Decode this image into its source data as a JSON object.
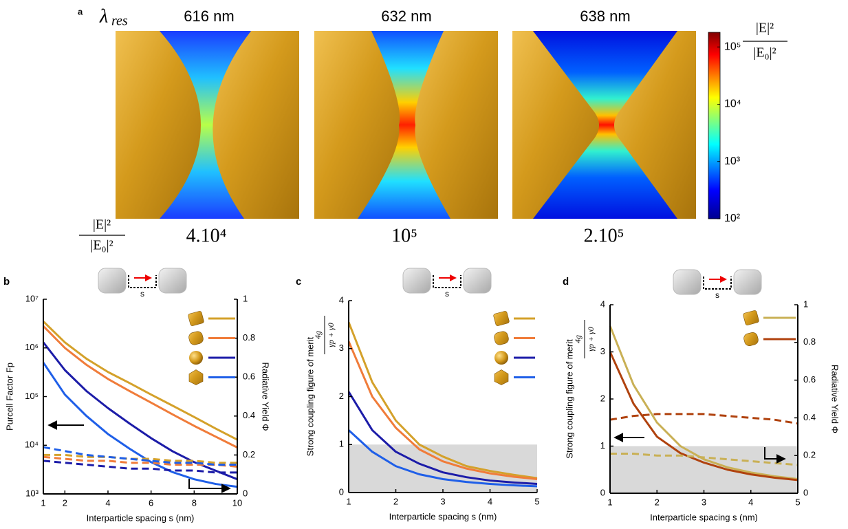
{
  "panel_a": {
    "label": "a",
    "lambda_symbol": "λ",
    "lambda_subscript": "res",
    "wavelengths": [
      "616 nm",
      "632 nm",
      "638 nm"
    ],
    "enhancement_numerator": "|E|²",
    "enhancement_denominator": "|E₀|²",
    "enhancements": [
      "4.10⁴",
      "10⁵",
      "2.10⁵"
    ],
    "colorbar": {
      "log": true,
      "lim": [
        100,
        180000
      ],
      "ticks": [
        {
          "value": 100,
          "label": "10²"
        },
        {
          "value": 1000,
          "label": "10³"
        },
        {
          "value": 10000,
          "label": "10⁴"
        },
        {
          "value": 100000,
          "label": "10⁵"
        }
      ]
    }
  },
  "chart_data": [
    {
      "type": "line",
      "panel": "b",
      "gap_label": "s",
      "xlabel": "Interparticle spacing s (nm)",
      "ylabel": "Purcell Factor Fp",
      "y2label": "Radiative Yield Φ",
      "ylog": true,
      "xlim": [
        1,
        10
      ],
      "xticks": [
        1,
        2,
        4,
        6,
        8,
        10
      ],
      "ylim": [
        1000,
        10000000
      ],
      "yticks": [
        {
          "value": 1000,
          "label": "10³"
        },
        {
          "value": 10000,
          "label": "10⁴"
        },
        {
          "value": 100000,
          "label": "10⁵"
        },
        {
          "value": 1000000,
          "label": "10⁶"
        },
        {
          "value": 10000000,
          "label": "10⁷"
        }
      ],
      "y2lim": [
        0,
        1
      ],
      "y2ticks": [
        0,
        0.2,
        0.4,
        0.6,
        0.8,
        1
      ],
      "x": [
        1,
        2,
        3,
        4,
        5,
        6,
        7,
        8,
        9,
        10
      ],
      "series": [
        {
          "color": "#d4a12a",
          "values": [
            3500000,
            1300000,
            600000,
            320000,
            190000,
            110000,
            65000,
            38000,
            22000,
            13000
          ]
        },
        {
          "color": "#f07c3a",
          "values": [
            2800000,
            1000000,
            450000,
            230000,
            130000,
            75000,
            43000,
            25000,
            15000,
            9000
          ]
        },
        {
          "color": "#1c1ca8",
          "values": [
            1300000,
            350000,
            130000,
            58000,
            28000,
            14000,
            7500,
            4500,
            3000,
            2000
          ]
        },
        {
          "color": "#1f5fe8",
          "values": [
            500000,
            110000,
            40000,
            17000,
            8500,
            4500,
            2800,
            2000,
            1600,
            1400
          ]
        },
        {
          "color": "#d4a12a",
          "dash": true,
          "axis": "y2",
          "values": [
            0.2,
            0.2,
            0.19,
            0.19,
            0.18,
            0.18,
            0.17,
            0.17,
            0.16,
            0.16
          ]
        },
        {
          "color": "#f07c3a",
          "dash": true,
          "axis": "y2",
          "values": [
            0.19,
            0.18,
            0.17,
            0.17,
            0.16,
            0.16,
            0.15,
            0.15,
            0.15,
            0.14
          ]
        },
        {
          "color": "#1c1ca8",
          "dash": true,
          "axis": "y2",
          "values": [
            0.17,
            0.16,
            0.15,
            0.14,
            0.13,
            0.13,
            0.12,
            0.12,
            0.11,
            0.11
          ]
        },
        {
          "color": "#1f5fe8",
          "dash": true,
          "axis": "y2",
          "values": [
            0.24,
            0.22,
            0.2,
            0.19,
            0.18,
            0.17,
            0.16,
            0.16,
            0.15,
            0.15
          ]
        }
      ]
    },
    {
      "type": "line",
      "panel": "c",
      "gap_label": "s",
      "xlabel": "Interparticle spacing s (nm)",
      "ylabel": "Strong coupling figure of merit",
      "y_formula_numerator": "4g",
      "y_formula_denominator": "γp + γ0",
      "shade_ylim": [
        0,
        1
      ],
      "xlim": [
        1,
        5
      ],
      "xticks": [
        1,
        2,
        3,
        4,
        5
      ],
      "ylim": [
        0,
        4
      ],
      "yticks": [
        0,
        1,
        2,
        3,
        4
      ],
      "x": [
        1,
        1.5,
        2,
        2.5,
        3,
        3.5,
        4,
        4.5,
        5
      ],
      "series": [
        {
          "color": "#d4a12a",
          "values": [
            3.55,
            2.3,
            1.5,
            1.0,
            0.75,
            0.55,
            0.45,
            0.37,
            0.3
          ]
        },
        {
          "color": "#f07c3a",
          "values": [
            3.15,
            2.0,
            1.35,
            0.9,
            0.65,
            0.5,
            0.4,
            0.33,
            0.28
          ]
        },
        {
          "color": "#1c1ca8",
          "values": [
            2.1,
            1.3,
            0.85,
            0.6,
            0.42,
            0.32,
            0.25,
            0.21,
            0.18
          ]
        },
        {
          "color": "#1f5fe8",
          "values": [
            1.3,
            0.85,
            0.55,
            0.38,
            0.28,
            0.22,
            0.18,
            0.15,
            0.13
          ]
        }
      ]
    },
    {
      "type": "line",
      "panel": "d",
      "gap_label": "s",
      "xlabel": "Interparticle spacing s (nm)",
      "ylabel": "Strong coupling figure of merit",
      "y_formula_numerator": "4g",
      "y_formula_denominator": "γp + γ0",
      "y2label": "Radiative Yield Φ",
      "shade_ylim": [
        0,
        1
      ],
      "xlim": [
        1,
        5
      ],
      "xticks": [
        1,
        2,
        3,
        4,
        5
      ],
      "ylim": [
        0,
        4
      ],
      "yticks": [
        0,
        1,
        2,
        3,
        4
      ],
      "y2lim": [
        0,
        1
      ],
      "y2ticks": [
        0,
        0.2,
        0.4,
        0.6,
        0.8,
        1
      ],
      "x": [
        1,
        1.5,
        2,
        2.5,
        3,
        3.5,
        4,
        4.5,
        5
      ],
      "series": [
        {
          "color": "#c9b055",
          "values": [
            3.55,
            2.3,
            1.5,
            1.0,
            0.72,
            0.55,
            0.44,
            0.36,
            0.3
          ]
        },
        {
          "color": "#b0420e",
          "values": [
            3.0,
            1.9,
            1.2,
            0.85,
            0.65,
            0.5,
            0.4,
            0.33,
            0.28
          ]
        },
        {
          "color": "#b0420e",
          "dash": true,
          "axis": "y2",
          "values": [
            0.39,
            0.41,
            0.42,
            0.42,
            0.42,
            0.41,
            0.4,
            0.39,
            0.37
          ]
        },
        {
          "color": "#c9b055",
          "dash": true,
          "axis": "y2",
          "values": [
            0.21,
            0.21,
            0.2,
            0.2,
            0.19,
            0.18,
            0.17,
            0.16,
            0.15
          ]
        }
      ]
    }
  ]
}
